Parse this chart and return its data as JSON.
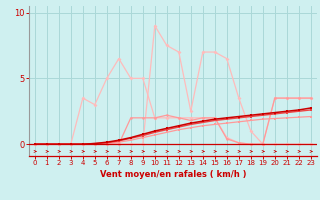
{
  "x": [
    0,
    1,
    2,
    3,
    4,
    5,
    6,
    7,
    8,
    9,
    10,
    11,
    12,
    13,
    14,
    15,
    16,
    17,
    18,
    19,
    20,
    21,
    22,
    23
  ],
  "line_peak_y": [
    0.0,
    0.0,
    0.0,
    0.0,
    0.0,
    0.0,
    0.0,
    0.0,
    0.0,
    0.0,
    9.0,
    7.5,
    7.0,
    2.5,
    7.0,
    7.0,
    6.5,
    3.5,
    1.0,
    0.0,
    0.0,
    0.0,
    0.0,
    0.0
  ],
  "line_mid_y": [
    0.0,
    0.0,
    0.0,
    0.0,
    3.5,
    3.0,
    5.0,
    6.5,
    5.0,
    5.0,
    2.0,
    2.0,
    2.0,
    2.0,
    2.0,
    2.0,
    0.5,
    0.1,
    0.0,
    0.0,
    3.5,
    3.5,
    3.5,
    3.5
  ],
  "line_dot1_y": [
    0.0,
    0.0,
    0.0,
    0.0,
    0.0,
    0.0,
    0.0,
    0.0,
    2.0,
    2.0,
    2.0,
    2.2,
    2.0,
    1.8,
    2.0,
    2.0,
    0.4,
    0.1,
    0.0,
    0.0,
    3.5,
    3.5,
    3.5,
    3.5
  ],
  "line_trend1_y": [
    0.0,
    0.0,
    0.0,
    0.0,
    0.0,
    0.05,
    0.15,
    0.3,
    0.5,
    0.75,
    1.0,
    1.2,
    1.4,
    1.6,
    1.75,
    1.9,
    2.0,
    2.1,
    2.2,
    2.3,
    2.4,
    2.5,
    2.6,
    2.75
  ],
  "line_trend2_y": [
    0.0,
    0.0,
    0.0,
    0.0,
    0.0,
    0.05,
    0.1,
    0.25,
    0.45,
    0.65,
    0.9,
    1.1,
    1.3,
    1.5,
    1.65,
    1.8,
    1.9,
    2.0,
    2.1,
    2.2,
    2.3,
    2.4,
    2.5,
    2.6
  ],
  "line_trend3_y": [
    0.0,
    0.0,
    0.0,
    0.0,
    0.0,
    0.0,
    0.05,
    0.15,
    0.3,
    0.5,
    0.7,
    0.9,
    1.1,
    1.25,
    1.4,
    1.5,
    1.6,
    1.7,
    1.8,
    1.9,
    1.95,
    2.0,
    2.05,
    2.1
  ],
  "bg_color": "#cff0f0",
  "grid_color": "#aad8d8",
  "color_dark": "#cc0000",
  "color_mid": "#ee4444",
  "color_light": "#ff9999",
  "color_pale": "#ffbbbb",
  "xlabel": "Vent moyen/en rafales ( km/h )",
  "yticks": [
    0,
    5,
    10
  ],
  "xlim": [
    -0.5,
    23.5
  ],
  "ylim": [
    -0.9,
    10.5
  ]
}
